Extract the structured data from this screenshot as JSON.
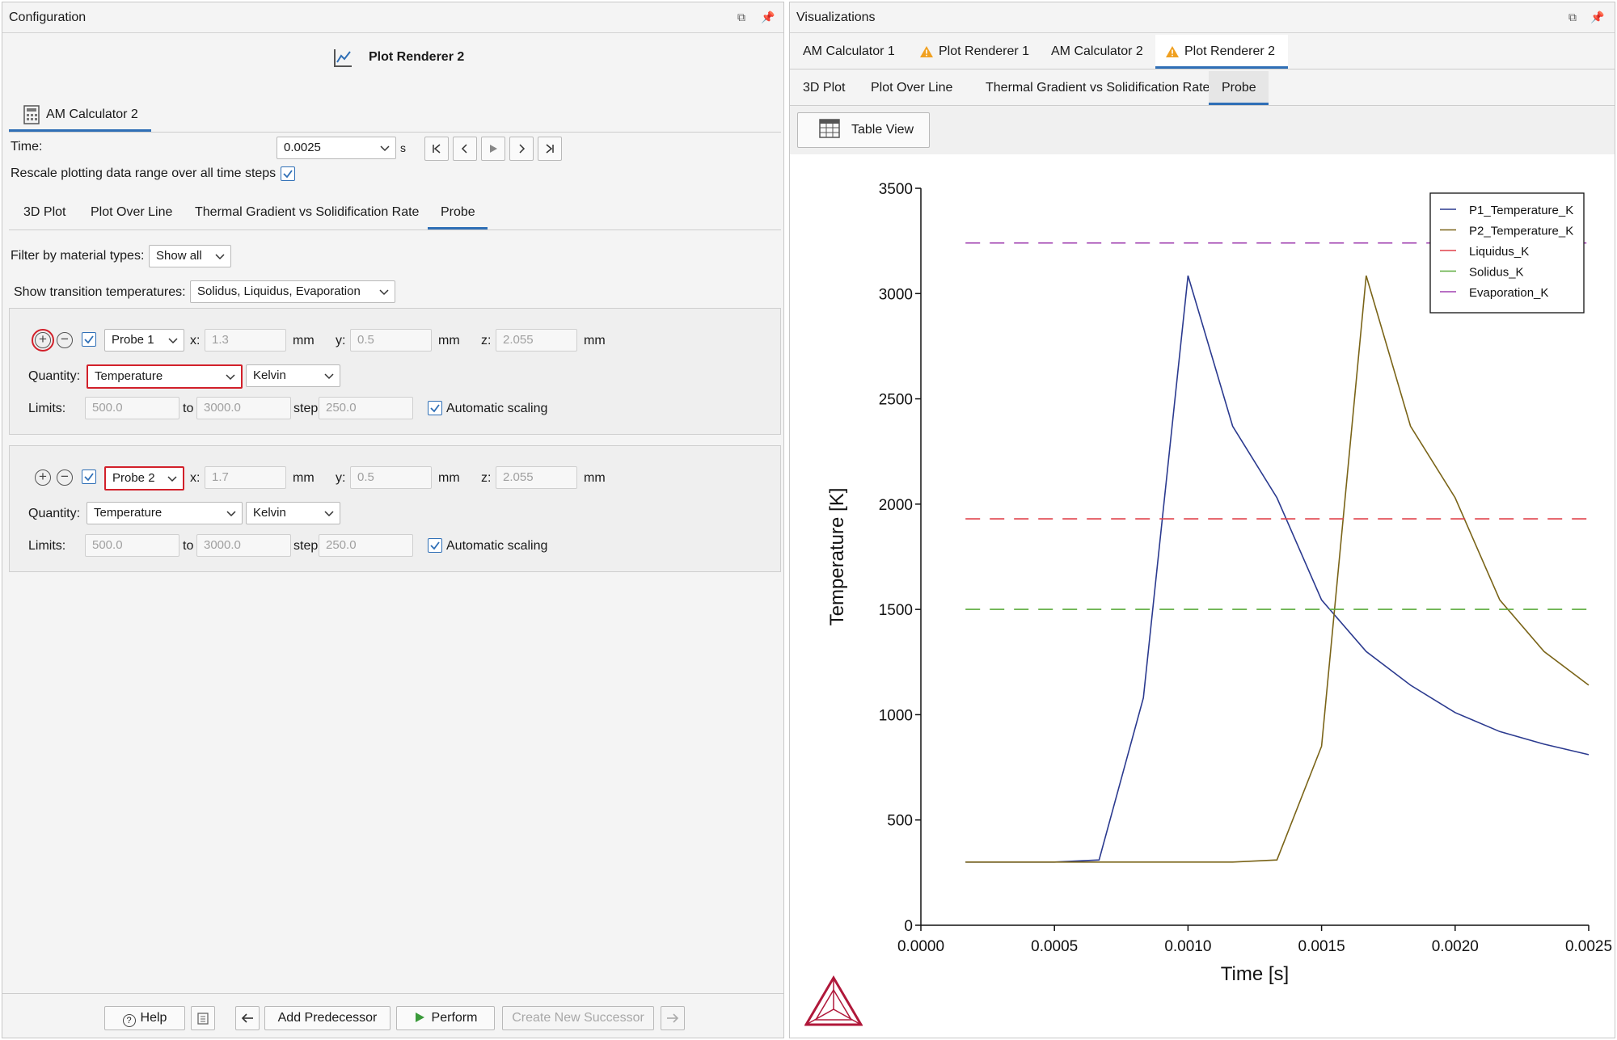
{
  "config": {
    "title": "Configuration",
    "renderer_title": "Plot Renderer 2",
    "source_tab": "AM Calculator 2",
    "time_label": "Time:",
    "time_value": "0.0025",
    "time_unit": "s",
    "rescale_label": "Rescale plotting data range over all time steps",
    "tabs": [
      "3D Plot",
      "Plot Over Line",
      "Thermal Gradient vs Solidification Rate",
      "Probe"
    ],
    "filter_label": "Filter by material types:",
    "filter_value": "Show all",
    "transition_label": "Show transition temperatures:",
    "transition_value": "Solidus, Liquidus, Evaporation",
    "probes": [
      {
        "name": "Probe 1",
        "x": "1.3",
        "y": "0.5",
        "z": "2.055",
        "unit": "mm",
        "quantity_label": "Quantity:",
        "quantity": "Temperature",
        "quantity_unit": "Kelvin",
        "limits_label": "Limits:",
        "min": "500.0",
        "to": "to",
        "max": "3000.0",
        "step_label": "step",
        "step": "250.0",
        "auto_label": "Automatic scaling"
      },
      {
        "name": "Probe 2",
        "x": "1.7",
        "y": "0.5",
        "z": "2.055",
        "unit": "mm",
        "quantity_label": "Quantity:",
        "quantity": "Temperature",
        "quantity_unit": "Kelvin",
        "limits_label": "Limits:",
        "min": "500.0",
        "to": "to",
        "max": "3000.0",
        "step_label": "step",
        "step": "250.0",
        "auto_label": "Automatic scaling"
      }
    ],
    "coord_labels": {
      "x": "x:",
      "y": "y:",
      "z": "z:"
    },
    "footer": {
      "help": "Help",
      "add_predecessor": "Add Predecessor",
      "perform": "Perform",
      "create_successor": "Create New Successor"
    }
  },
  "viz": {
    "title": "Visualizations",
    "top_tabs": [
      "AM Calculator 1",
      "Plot Renderer 1",
      "AM Calculator 2",
      "Plot Renderer 2"
    ],
    "sub_tabs": [
      "3D Plot",
      "Plot Over Line",
      "Thermal Gradient vs Solidification Rate",
      "Probe"
    ],
    "table_view": "Table View"
  },
  "colors": {
    "accent": "#2f6fb6",
    "highlight_red": "#d2202a",
    "warning": "#f0a020",
    "p1": "#2b3a8f",
    "p2": "#7a6418",
    "liquidus": "#e0404a",
    "solidus": "#5aaa3a",
    "evaporation": "#a040b0"
  },
  "chart_data": {
    "type": "line",
    "xlabel": "Time [s]",
    "ylabel": "Temperature [K]",
    "xlim": [
      0,
      0.0025
    ],
    "ylim": [
      0,
      3500
    ],
    "xticks": [
      "0.0000",
      "0.0005",
      "0.0010",
      "0.0015",
      "0.0020",
      "0.0025"
    ],
    "yticks": [
      "0",
      "500",
      "1000",
      "1500",
      "2000",
      "2500",
      "3000",
      "3500"
    ],
    "legend_position": "top-right",
    "grid": false,
    "series": [
      {
        "name": "P1_Temperature_K",
        "style": "solid",
        "color": "#2b3a8f",
        "x": [
          0.000167,
          0.000333,
          0.0005,
          0.000667,
          0.000833,
          0.001,
          0.001167,
          0.001333,
          0.0015,
          0.001667,
          0.001833,
          0.002,
          0.002167,
          0.002333,
          0.0025
        ],
        "y": [
          300,
          300,
          300,
          310,
          1080,
          3085,
          2370,
          2030,
          1545,
          1300,
          1140,
          1010,
          920,
          860,
          810
        ]
      },
      {
        "name": "P2_Temperature_K",
        "style": "solid",
        "color": "#7a6418",
        "x": [
          0.000167,
          0.000333,
          0.0005,
          0.000667,
          0.000833,
          0.001,
          0.001167,
          0.001333,
          0.0015,
          0.001667,
          0.001833,
          0.002,
          0.002167,
          0.002333,
          0.0025
        ],
        "y": [
          300,
          300,
          300,
          300,
          300,
          300,
          300,
          310,
          850,
          3085,
          2370,
          2030,
          1545,
          1300,
          1140
        ]
      },
      {
        "name": "Liquidus_K",
        "style": "dashed",
        "color": "#e0404a",
        "x": [
          0.000167,
          0.0025
        ],
        "y": [
          1930,
          1930
        ]
      },
      {
        "name": "Solidus_K",
        "style": "dashed",
        "color": "#5aaa3a",
        "x": [
          0.000167,
          0.0025
        ],
        "y": [
          1500,
          1500
        ]
      },
      {
        "name": "Evaporation_K",
        "style": "dashed",
        "color": "#a040b0",
        "x": [
          0.000167,
          0.0025
        ],
        "y": [
          3240,
          3240
        ]
      }
    ]
  }
}
